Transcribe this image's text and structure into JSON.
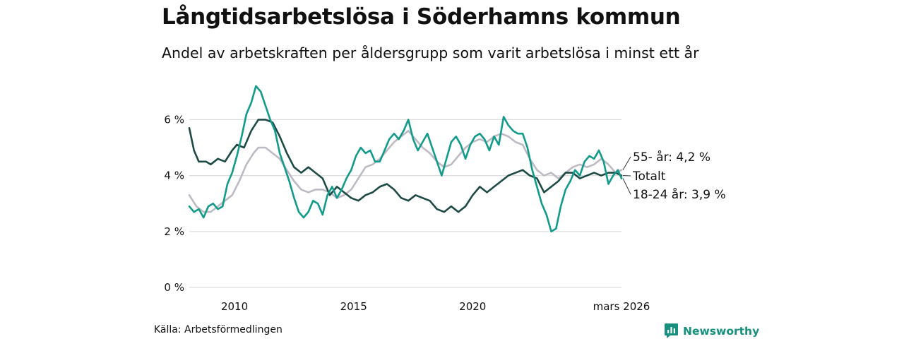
{
  "title": "Långtidsarbetslösa i Söderhamns kommun",
  "subtitle": "Andel av arbetskraften per åldersgrupp som varit arbetslösa i minst ett år",
  "source": "Källa: Arbetsförmedlingen",
  "brand": "Newsworthy",
  "colors": {
    "brand": "#17907f",
    "young": "#129b8b",
    "total": "#1e4a45",
    "old": "#bdbac4",
    "grid": "#dddddd",
    "text": "#111111"
  },
  "chart_data": {
    "type": "line",
    "title": "Långtidsarbetslösa i Söderhamns kommun",
    "subtitle": "Andel av arbetskraften per åldersgrupp som varit arbetslösa i minst ett år",
    "xlabel": "",
    "ylabel": "",
    "x_range": [
      2008.1,
      2026.25
    ],
    "ylim": [
      0,
      7.2
    ],
    "y_ticks": [
      {
        "value": 0,
        "label": "0 %"
      },
      {
        "value": 2,
        "label": "2 %"
      },
      {
        "value": 4,
        "label": "4 %"
      },
      {
        "value": 6,
        "label": "6 %"
      }
    ],
    "x_ticks": [
      {
        "value": 2010,
        "label": "2010"
      },
      {
        "value": 2015,
        "label": "2015"
      },
      {
        "value": 2020,
        "label": "2020"
      },
      {
        "value": 2026.25,
        "label": "mars 2026"
      }
    ],
    "grid": true,
    "series": [
      {
        "name": "55- år",
        "key": "old",
        "end_label": "55- år: 4,2 %",
        "points": [
          [
            2008.1,
            3.3
          ],
          [
            2008.4,
            2.9
          ],
          [
            2008.7,
            2.7
          ],
          [
            2009.0,
            2.7
          ],
          [
            2009.3,
            2.9
          ],
          [
            2009.6,
            3.1
          ],
          [
            2009.9,
            3.3
          ],
          [
            2010.2,
            3.8
          ],
          [
            2010.5,
            4.4
          ],
          [
            2010.8,
            4.8
          ],
          [
            2011.0,
            5.0
          ],
          [
            2011.3,
            5.0
          ],
          [
            2011.6,
            4.8
          ],
          [
            2011.9,
            4.6
          ],
          [
            2012.2,
            4.2
          ],
          [
            2012.5,
            3.8
          ],
          [
            2012.8,
            3.5
          ],
          [
            2013.1,
            3.4
          ],
          [
            2013.4,
            3.5
          ],
          [
            2013.7,
            3.5
          ],
          [
            2014.0,
            3.4
          ],
          [
            2014.3,
            3.2
          ],
          [
            2014.6,
            3.3
          ],
          [
            2014.9,
            3.5
          ],
          [
            2015.2,
            3.9
          ],
          [
            2015.5,
            4.3
          ],
          [
            2015.8,
            4.4
          ],
          [
            2016.1,
            4.6
          ],
          [
            2016.4,
            4.9
          ],
          [
            2016.7,
            5.2
          ],
          [
            2017.0,
            5.4
          ],
          [
            2017.3,
            5.6
          ],
          [
            2017.6,
            5.3
          ],
          [
            2017.9,
            5.0
          ],
          [
            2018.2,
            4.8
          ],
          [
            2018.5,
            4.5
          ],
          [
            2018.8,
            4.3
          ],
          [
            2019.1,
            4.4
          ],
          [
            2019.4,
            4.7
          ],
          [
            2019.7,
            5.0
          ],
          [
            2020.0,
            5.2
          ],
          [
            2020.3,
            5.3
          ],
          [
            2020.6,
            5.2
          ],
          [
            2020.9,
            5.4
          ],
          [
            2021.2,
            5.5
          ],
          [
            2021.5,
            5.4
          ],
          [
            2021.8,
            5.2
          ],
          [
            2022.1,
            5.1
          ],
          [
            2022.4,
            4.6
          ],
          [
            2022.7,
            4.2
          ],
          [
            2023.0,
            4.0
          ],
          [
            2023.3,
            4.1
          ],
          [
            2023.6,
            3.9
          ],
          [
            2023.9,
            4.1
          ],
          [
            2024.2,
            4.3
          ],
          [
            2024.5,
            4.4
          ],
          [
            2024.8,
            4.3
          ],
          [
            2025.1,
            4.4
          ],
          [
            2025.4,
            4.6
          ],
          [
            2025.7,
            4.4
          ],
          [
            2026.0,
            4.1
          ],
          [
            2026.25,
            4.2
          ]
        ]
      },
      {
        "name": "Totalt",
        "key": "total",
        "end_label": "Totalt",
        "points": [
          [
            2008.1,
            5.7
          ],
          [
            2008.3,
            4.9
          ],
          [
            2008.5,
            4.5
          ],
          [
            2008.8,
            4.5
          ],
          [
            2009.0,
            4.4
          ],
          [
            2009.3,
            4.6
          ],
          [
            2009.6,
            4.5
          ],
          [
            2009.9,
            4.9
          ],
          [
            2010.1,
            5.1
          ],
          [
            2010.4,
            5.0
          ],
          [
            2010.7,
            5.6
          ],
          [
            2011.0,
            6.0
          ],
          [
            2011.3,
            6.0
          ],
          [
            2011.6,
            5.9
          ],
          [
            2011.9,
            5.4
          ],
          [
            2012.2,
            4.8
          ],
          [
            2012.5,
            4.3
          ],
          [
            2012.8,
            4.1
          ],
          [
            2013.1,
            4.3
          ],
          [
            2013.4,
            4.1
          ],
          [
            2013.7,
            3.9
          ],
          [
            2014.0,
            3.3
          ],
          [
            2014.3,
            3.6
          ],
          [
            2014.6,
            3.4
          ],
          [
            2014.9,
            3.2
          ],
          [
            2015.2,
            3.1
          ],
          [
            2015.5,
            3.3
          ],
          [
            2015.8,
            3.4
          ],
          [
            2016.1,
            3.6
          ],
          [
            2016.4,
            3.7
          ],
          [
            2016.7,
            3.5
          ],
          [
            2017.0,
            3.2
          ],
          [
            2017.3,
            3.1
          ],
          [
            2017.6,
            3.3
          ],
          [
            2017.9,
            3.2
          ],
          [
            2018.2,
            3.1
          ],
          [
            2018.5,
            2.8
          ],
          [
            2018.8,
            2.7
          ],
          [
            2019.1,
            2.9
          ],
          [
            2019.4,
            2.7
          ],
          [
            2019.7,
            2.9
          ],
          [
            2020.0,
            3.3
          ],
          [
            2020.3,
            3.6
          ],
          [
            2020.6,
            3.4
          ],
          [
            2020.9,
            3.6
          ],
          [
            2021.2,
            3.8
          ],
          [
            2021.5,
            4.0
          ],
          [
            2021.8,
            4.1
          ],
          [
            2022.1,
            4.2
          ],
          [
            2022.4,
            4.0
          ],
          [
            2022.7,
            3.9
          ],
          [
            2023.0,
            3.4
          ],
          [
            2023.3,
            3.6
          ],
          [
            2023.6,
            3.8
          ],
          [
            2023.9,
            4.1
          ],
          [
            2024.2,
            4.1
          ],
          [
            2024.5,
            3.9
          ],
          [
            2024.8,
            4.0
          ],
          [
            2025.1,
            4.1
          ],
          [
            2025.4,
            4.0
          ],
          [
            2025.7,
            4.1
          ],
          [
            2026.0,
            4.1
          ],
          [
            2026.25,
            4.0
          ]
        ]
      },
      {
        "name": "18-24 år",
        "key": "young",
        "end_label": "18-24 år: 3,9 %",
        "points": [
          [
            2008.1,
            2.9
          ],
          [
            2008.3,
            2.7
          ],
          [
            2008.5,
            2.8
          ],
          [
            2008.7,
            2.5
          ],
          [
            2008.9,
            2.9
          ],
          [
            2009.1,
            3.0
          ],
          [
            2009.3,
            2.8
          ],
          [
            2009.5,
            2.9
          ],
          [
            2009.7,
            3.7
          ],
          [
            2009.9,
            4.1
          ],
          [
            2010.1,
            4.7
          ],
          [
            2010.3,
            5.4
          ],
          [
            2010.5,
            6.2
          ],
          [
            2010.7,
            6.6
          ],
          [
            2010.9,
            7.2
          ],
          [
            2011.1,
            7.0
          ],
          [
            2011.3,
            6.5
          ],
          [
            2011.5,
            6.0
          ],
          [
            2011.7,
            5.6
          ],
          [
            2011.9,
            4.8
          ],
          [
            2012.1,
            4.3
          ],
          [
            2012.3,
            3.8
          ],
          [
            2012.5,
            3.2
          ],
          [
            2012.7,
            2.7
          ],
          [
            2012.9,
            2.5
          ],
          [
            2013.1,
            2.7
          ],
          [
            2013.3,
            3.1
          ],
          [
            2013.5,
            3.0
          ],
          [
            2013.7,
            2.6
          ],
          [
            2013.9,
            3.3
          ],
          [
            2014.1,
            3.6
          ],
          [
            2014.3,
            3.2
          ],
          [
            2014.5,
            3.5
          ],
          [
            2014.7,
            3.9
          ],
          [
            2014.9,
            4.2
          ],
          [
            2015.1,
            4.7
          ],
          [
            2015.3,
            5.0
          ],
          [
            2015.5,
            4.8
          ],
          [
            2015.7,
            4.9
          ],
          [
            2015.9,
            4.5
          ],
          [
            2016.1,
            4.5
          ],
          [
            2016.3,
            4.9
          ],
          [
            2016.5,
            5.3
          ],
          [
            2016.7,
            5.5
          ],
          [
            2016.9,
            5.3
          ],
          [
            2017.1,
            5.6
          ],
          [
            2017.3,
            6.0
          ],
          [
            2017.5,
            5.3
          ],
          [
            2017.7,
            4.9
          ],
          [
            2017.9,
            5.2
          ],
          [
            2018.1,
            5.5
          ],
          [
            2018.3,
            5.0
          ],
          [
            2018.5,
            4.5
          ],
          [
            2018.7,
            4.0
          ],
          [
            2018.9,
            4.6
          ],
          [
            2019.1,
            5.2
          ],
          [
            2019.3,
            5.4
          ],
          [
            2019.5,
            5.1
          ],
          [
            2019.7,
            4.6
          ],
          [
            2019.9,
            5.1
          ],
          [
            2020.1,
            5.4
          ],
          [
            2020.3,
            5.5
          ],
          [
            2020.5,
            5.3
          ],
          [
            2020.7,
            4.9
          ],
          [
            2020.9,
            5.4
          ],
          [
            2021.1,
            5.1
          ],
          [
            2021.3,
            6.1
          ],
          [
            2021.5,
            5.8
          ],
          [
            2021.7,
            5.6
          ],
          [
            2021.9,
            5.5
          ],
          [
            2022.1,
            5.5
          ],
          [
            2022.3,
            5.0
          ],
          [
            2022.5,
            4.2
          ],
          [
            2022.7,
            3.6
          ],
          [
            2022.9,
            3.0
          ],
          [
            2023.1,
            2.6
          ],
          [
            2023.3,
            2.0
          ],
          [
            2023.5,
            2.1
          ],
          [
            2023.7,
            2.9
          ],
          [
            2023.9,
            3.5
          ],
          [
            2024.1,
            3.8
          ],
          [
            2024.3,
            4.2
          ],
          [
            2024.5,
            4.0
          ],
          [
            2024.7,
            4.5
          ],
          [
            2024.9,
            4.7
          ],
          [
            2025.1,
            4.6
          ],
          [
            2025.3,
            4.9
          ],
          [
            2025.5,
            4.5
          ],
          [
            2025.7,
            3.7
          ],
          [
            2025.9,
            4.0
          ],
          [
            2026.1,
            4.2
          ],
          [
            2026.25,
            3.9
          ]
        ]
      }
    ]
  }
}
